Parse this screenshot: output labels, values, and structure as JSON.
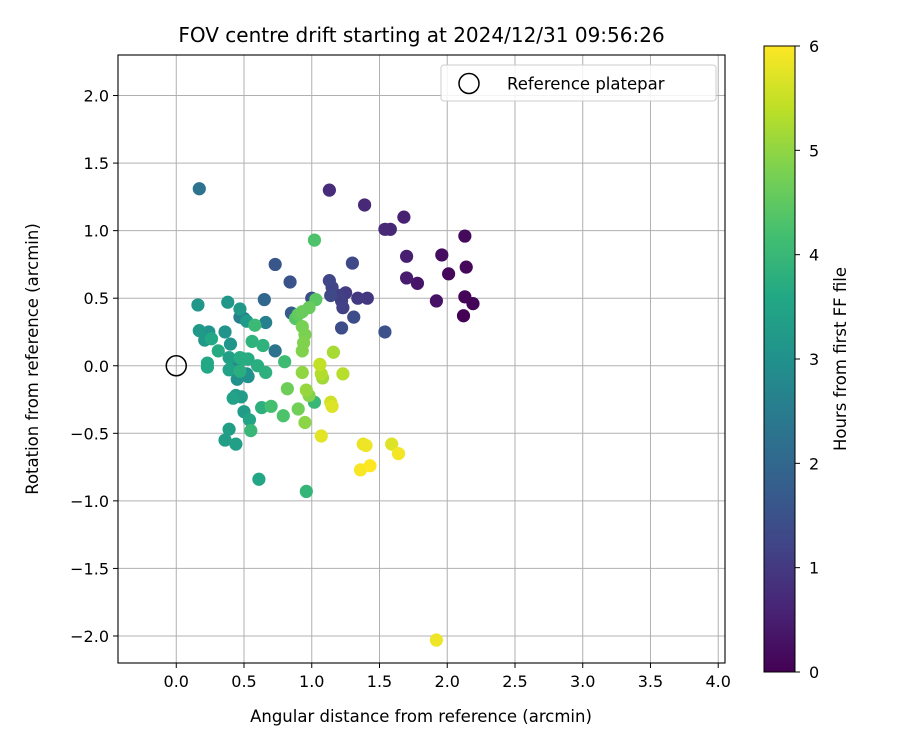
{
  "chart_data": {
    "type": "scatter",
    "title": "FOV centre drift starting at 2024/12/31 09:56:26",
    "xlabel": "Angular distance from reference (arcmin)",
    "ylabel": "Rotation from reference (arcmin)",
    "xlim": [
      -0.43,
      4.05
    ],
    "ylim": [
      -2.2,
      2.3
    ],
    "xticks": [
      0.0,
      0.5,
      1.0,
      1.5,
      2.0,
      2.5,
      3.0,
      3.5,
      4.0
    ],
    "xtick_labels": [
      "0.0",
      "0.5",
      "1.0",
      "1.5",
      "2.0",
      "2.5",
      "3.0",
      "3.5",
      "4.0"
    ],
    "yticks": [
      -2.0,
      -1.5,
      -1.0,
      -0.5,
      0.0,
      0.5,
      1.0,
      1.5,
      2.0
    ],
    "ytick_labels": [
      "−2.0",
      "−1.5",
      "−1.0",
      "−0.5",
      "0.0",
      "0.5",
      "1.0",
      "1.5",
      "2.0"
    ],
    "grid": true,
    "legend": {
      "placement": "top-right",
      "entries": [
        "Reference platepar"
      ]
    },
    "reference_point": {
      "label": "Reference platepar",
      "x": 0.0,
      "y": 0.0
    },
    "colorbar": {
      "label": "Hours from first FF file",
      "colormap": "viridis",
      "range": [
        0,
        6
      ],
      "ticks": [
        0,
        1,
        2,
        3,
        4,
        5,
        6
      ],
      "tick_labels": [
        "0",
        "1",
        "2",
        "3",
        "4",
        "5",
        "6"
      ]
    },
    "color_series": "hours",
    "points": [
      {
        "x": 2.12,
        "y": 0.37,
        "c": 0.02
      },
      {
        "x": 2.19,
        "y": 0.46,
        "c": 0.05
      },
      {
        "x": 2.13,
        "y": 0.51,
        "c": 0.08
      },
      {
        "x": 2.14,
        "y": 0.73,
        "c": 0.1
      },
      {
        "x": 2.01,
        "y": 0.68,
        "c": 0.12
      },
      {
        "x": 2.13,
        "y": 0.96,
        "c": 0.15
      },
      {
        "x": 1.96,
        "y": 0.82,
        "c": 0.2
      },
      {
        "x": 1.92,
        "y": 0.48,
        "c": 0.3
      },
      {
        "x": 1.78,
        "y": 0.61,
        "c": 0.35
      },
      {
        "x": 1.7,
        "y": 0.65,
        "c": 0.45
      },
      {
        "x": 1.7,
        "y": 0.81,
        "c": 0.5
      },
      {
        "x": 1.68,
        "y": 1.1,
        "c": 0.55
      },
      {
        "x": 1.58,
        "y": 1.01,
        "c": 0.65
      },
      {
        "x": 1.54,
        "y": 1.01,
        "c": 0.7
      },
      {
        "x": 1.39,
        "y": 1.19,
        "c": 0.7
      },
      {
        "x": 1.13,
        "y": 1.3,
        "c": 0.75
      },
      {
        "x": 1.41,
        "y": 0.5,
        "c": 0.95
      },
      {
        "x": 1.34,
        "y": 0.5,
        "c": 1.0
      },
      {
        "x": 1.25,
        "y": 0.54,
        "c": 1.05
      },
      {
        "x": 1.22,
        "y": 0.48,
        "c": 1.1
      },
      {
        "x": 1.2,
        "y": 0.52,
        "c": 1.1
      },
      {
        "x": 1.23,
        "y": 0.43,
        "c": 1.15
      },
      {
        "x": 1.15,
        "y": 0.58,
        "c": 1.2
      },
      {
        "x": 1.13,
        "y": 0.63,
        "c": 1.25
      },
      {
        "x": 1.14,
        "y": 0.52,
        "c": 1.3
      },
      {
        "x": 1.3,
        "y": 0.76,
        "c": 1.3
      },
      {
        "x": 1.0,
        "y": 0.5,
        "c": 1.4
      },
      {
        "x": 1.22,
        "y": 0.28,
        "c": 1.4
      },
      {
        "x": 1.31,
        "y": 0.36,
        "c": 1.4
      },
      {
        "x": 1.54,
        "y": 0.25,
        "c": 1.5
      },
      {
        "x": 0.84,
        "y": 0.62,
        "c": 1.55
      },
      {
        "x": 0.73,
        "y": 0.75,
        "c": 1.6
      },
      {
        "x": 0.85,
        "y": 0.39,
        "c": 1.7
      },
      {
        "x": 0.65,
        "y": 0.49,
        "c": 2.0
      },
      {
        "x": 0.17,
        "y": 1.31,
        "c": 2.25
      },
      {
        "x": 0.73,
        "y": 0.11,
        "c": 2.3
      },
      {
        "x": 0.5,
        "y": 0.35,
        "c": 2.5
      },
      {
        "x": 0.47,
        "y": 0.36,
        "c": 2.6
      },
      {
        "x": 0.66,
        "y": 0.32,
        "c": 2.6
      },
      {
        "x": 0.48,
        "y": -0.05,
        "c": 2.65
      },
      {
        "x": 0.46,
        "y": -0.08,
        "c": 2.7
      },
      {
        "x": 0.52,
        "y": -0.06,
        "c": 2.9
      },
      {
        "x": 0.43,
        "y": 0.02,
        "c": 2.9
      },
      {
        "x": 0.45,
        "y": -0.1,
        "c": 3.0
      },
      {
        "x": 0.53,
        "y": -0.08,
        "c": 3.0
      },
      {
        "x": 0.36,
        "y": 0.25,
        "c": 3.1
      },
      {
        "x": 0.24,
        "y": 0.25,
        "c": 3.1
      },
      {
        "x": 0.4,
        "y": 0.16,
        "c": 3.1
      },
      {
        "x": 0.38,
        "y": 0.47,
        "c": 3.15
      },
      {
        "x": 0.16,
        "y": 0.45,
        "c": 3.15
      },
      {
        "x": 0.47,
        "y": 0.42,
        "c": 3.2
      },
      {
        "x": 0.21,
        "y": 0.19,
        "c": 3.2
      },
      {
        "x": 0.17,
        "y": 0.26,
        "c": 3.2
      },
      {
        "x": 0.52,
        "y": 0.33,
        "c": 3.25
      },
      {
        "x": 0.48,
        "y": -0.23,
        "c": 3.3
      },
      {
        "x": 0.44,
        "y": -0.22,
        "c": 3.3
      },
      {
        "x": 0.5,
        "y": -0.34,
        "c": 3.3
      },
      {
        "x": 0.39,
        "y": -0.47,
        "c": 3.35
      },
      {
        "x": 0.36,
        "y": -0.55,
        "c": 3.35
      },
      {
        "x": 0.44,
        "y": -0.58,
        "c": 3.4
      },
      {
        "x": 0.39,
        "y": 0.06,
        "c": 3.4
      },
      {
        "x": 0.39,
        "y": -0.03,
        "c": 3.45
      },
      {
        "x": 0.42,
        "y": -0.24,
        "c": 3.45
      },
      {
        "x": 0.54,
        "y": -0.4,
        "c": 3.5
      },
      {
        "x": 0.61,
        "y": -0.84,
        "c": 3.55
      },
      {
        "x": 0.23,
        "y": 0.02,
        "c": 3.6
      },
      {
        "x": 0.23,
        "y": -0.01,
        "c": 3.6
      },
      {
        "x": 0.26,
        "y": 0.2,
        "c": 3.6
      },
      {
        "x": 0.31,
        "y": 0.11,
        "c": 3.65
      },
      {
        "x": 0.53,
        "y": 0.05,
        "c": 3.65
      },
      {
        "x": 0.5,
        "y": 0.05,
        "c": 3.7
      },
      {
        "x": 0.47,
        "y": 0.06,
        "c": 3.7
      },
      {
        "x": 0.47,
        "y": -0.04,
        "c": 3.75
      },
      {
        "x": 0.6,
        "y": 0.0,
        "c": 3.75
      },
      {
        "x": 0.66,
        "y": -0.05,
        "c": 3.8
      },
      {
        "x": 0.63,
        "y": -0.31,
        "c": 3.8
      },
      {
        "x": 0.56,
        "y": 0.18,
        "c": 3.85
      },
      {
        "x": 0.64,
        "y": 0.15,
        "c": 3.85
      },
      {
        "x": 0.96,
        "y": -0.93,
        "c": 3.95
      },
      {
        "x": 0.55,
        "y": -0.48,
        "c": 4.0
      },
      {
        "x": 1.02,
        "y": -0.27,
        "c": 4.0
      },
      {
        "x": 0.58,
        "y": 0.3,
        "c": 4.05
      },
      {
        "x": 0.8,
        "y": 0.03,
        "c": 4.1
      },
      {
        "x": 0.7,
        "y": -0.3,
        "c": 4.2
      },
      {
        "x": 0.79,
        "y": -0.37,
        "c": 4.3
      },
      {
        "x": 1.02,
        "y": 0.93,
        "c": 4.3
      },
      {
        "x": 0.88,
        "y": 0.35,
        "c": 4.4
      },
      {
        "x": 1.03,
        "y": 0.49,
        "c": 4.45
      },
      {
        "x": 0.9,
        "y": 0.38,
        "c": 4.55
      },
      {
        "x": 0.93,
        "y": 0.4,
        "c": 4.6
      },
      {
        "x": 0.98,
        "y": 0.43,
        "c": 4.6
      },
      {
        "x": 0.82,
        "y": -0.17,
        "c": 4.65
      },
      {
        "x": 0.9,
        "y": -0.32,
        "c": 4.7
      },
      {
        "x": 0.93,
        "y": 0.29,
        "c": 4.75
      },
      {
        "x": 0.95,
        "y": 0.23,
        "c": 4.8
      },
      {
        "x": 0.94,
        "y": 0.17,
        "c": 4.85
      },
      {
        "x": 0.93,
        "y": 0.11,
        "c": 4.85
      },
      {
        "x": 0.98,
        "y": -0.22,
        "c": 4.9
      },
      {
        "x": 0.95,
        "y": -0.42,
        "c": 4.95
      },
      {
        "x": 0.93,
        "y": -0.05,
        "c": 5.0
      },
      {
        "x": 0.96,
        "y": -0.18,
        "c": 5.05
      },
      {
        "x": 1.08,
        "y": -0.09,
        "c": 5.15
      },
      {
        "x": 1.16,
        "y": 0.1,
        "c": 5.2
      },
      {
        "x": 1.07,
        "y": -0.06,
        "c": 5.3
      },
      {
        "x": 1.23,
        "y": -0.06,
        "c": 5.35
      },
      {
        "x": 1.06,
        "y": 0.01,
        "c": 5.45
      },
      {
        "x": 1.14,
        "y": -0.27,
        "c": 5.55
      },
      {
        "x": 1.15,
        "y": -0.3,
        "c": 5.7
      },
      {
        "x": 1.07,
        "y": -0.52,
        "c": 5.75
      },
      {
        "x": 1.59,
        "y": -0.58,
        "c": 5.7
      },
      {
        "x": 1.38,
        "y": -0.58,
        "c": 5.8
      },
      {
        "x": 1.4,
        "y": -0.59,
        "c": 5.85
      },
      {
        "x": 1.64,
        "y": -0.65,
        "c": 5.9
      },
      {
        "x": 1.36,
        "y": -0.77,
        "c": 5.95
      },
      {
        "x": 1.43,
        "y": -0.74,
        "c": 6.0
      },
      {
        "x": 1.92,
        "y": -2.03,
        "c": 5.85
      }
    ]
  }
}
